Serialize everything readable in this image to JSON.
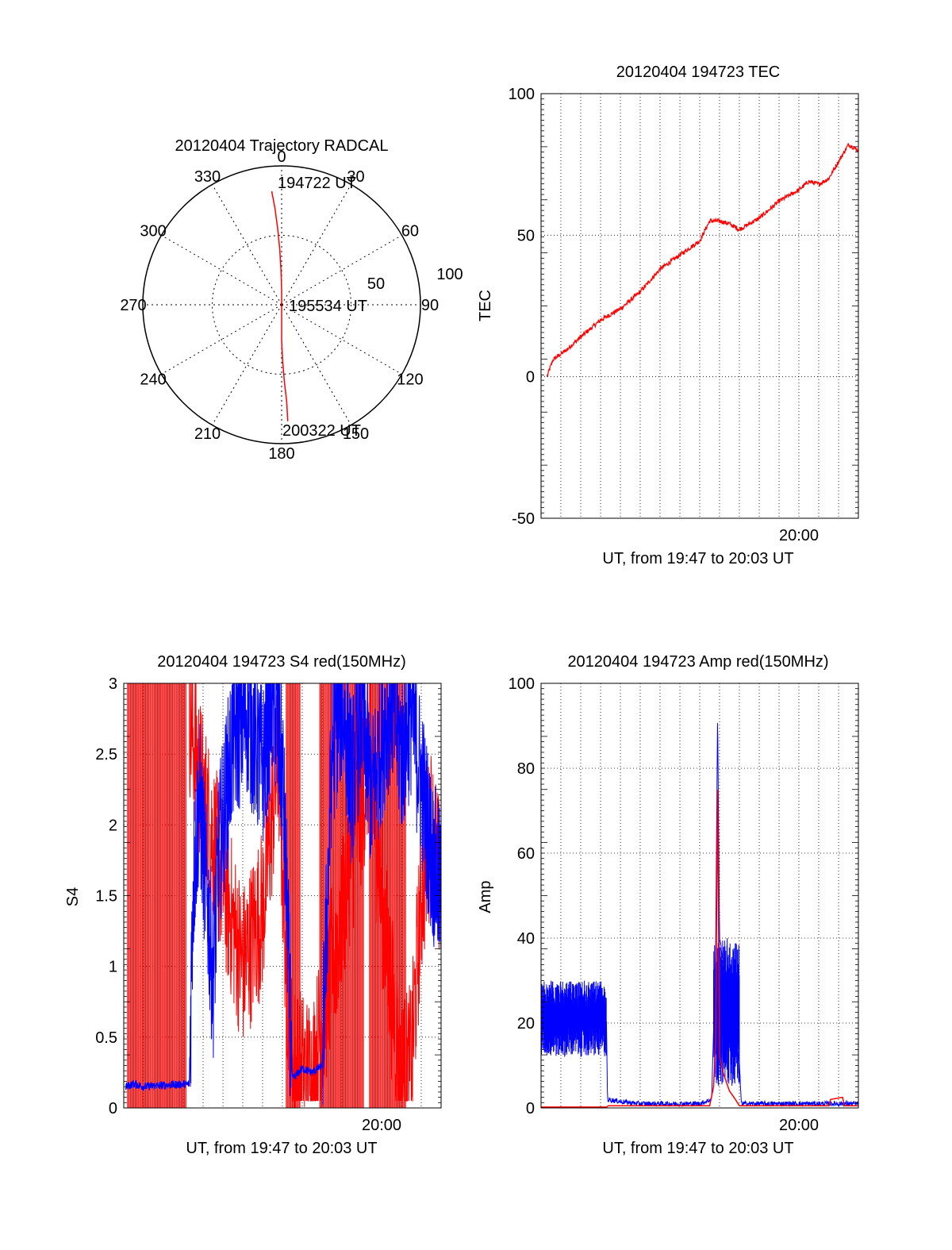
{
  "colors": {
    "red": "#ff0000",
    "blue": "#0000ff",
    "axis": "#000000"
  },
  "chart_data": [
    {
      "id": "trajectory",
      "type": "polar",
      "title": "20120404 Trajectory RADCAL",
      "angle_labels": [
        "0",
        "30",
        "60",
        "90",
        "120",
        "150",
        "180",
        "210",
        "240",
        "270",
        "300",
        "330"
      ],
      "radius_labels": [
        "50",
        "100"
      ],
      "start_label": "194722 UT",
      "mid_label": "195534 UT",
      "end_label": "200322 UT",
      "series": [
        {
          "color": "red",
          "points": [
            [
              355,
              82
            ],
            [
              356,
              70
            ],
            [
              357,
              55
            ],
            [
              358,
              40
            ],
            [
              359,
              25
            ],
            [
              0,
              10
            ],
            [
              0,
              3
            ],
            [
              180,
              10
            ],
            [
              180,
              25
            ],
            [
              179,
              40
            ],
            [
              178,
              55
            ],
            [
              177,
              70
            ],
            [
              177,
              84
            ]
          ]
        }
      ]
    },
    {
      "id": "tec",
      "type": "line",
      "title": "20120404 194723 TEC",
      "xlabel": "UT, from 19:47 to 20:03 UT",
      "ylabel": "TEC",
      "xlim": [
        0,
        16
      ],
      "ylim": [
        -50,
        100
      ],
      "yticks": [
        -50,
        0,
        50,
        100
      ],
      "xtick_labels": [
        {
          "x": 13,
          "label": "20:00"
        }
      ],
      "series": [
        {
          "color": "red",
          "points": [
            [
              0.3,
              0
            ],
            [
              0.6,
              6
            ],
            [
              1.2,
              9
            ],
            [
              2,
              14
            ],
            [
              3,
              20
            ],
            [
              4,
              24
            ],
            [
              5,
              30
            ],
            [
              6,
              38
            ],
            [
              7,
              43
            ],
            [
              8,
              48
            ],
            [
              8.5,
              55
            ],
            [
              9,
              55
            ],
            [
              9.5,
              54
            ],
            [
              10,
              52
            ],
            [
              10.5,
              54
            ],
            [
              11,
              56
            ],
            [
              12,
              62
            ],
            [
              13,
              66
            ],
            [
              13.5,
              69
            ],
            [
              14,
              68
            ],
            [
              14.5,
              70
            ],
            [
              15,
              76
            ],
            [
              15.5,
              82
            ],
            [
              16,
              80
            ]
          ]
        }
      ]
    },
    {
      "id": "s4",
      "type": "line",
      "title": "20120404 194723 S4 red(150MHz)",
      "xlabel": "UT, from 19:47 to 20:03 UT",
      "ylabel": "S4",
      "xlim": [
        0,
        16
      ],
      "ylim": [
        0,
        3
      ],
      "yticks": [
        0,
        0.5,
        1,
        1.5,
        2,
        2.5,
        3
      ],
      "xtick_labels": [
        {
          "x": 13,
          "label": "20:00"
        }
      ],
      "series": [
        {
          "color": "red",
          "style": "spikes",
          "segments": [
            [
              0.2,
              3.2
            ],
            [
              8.2,
              8.9
            ],
            [
              9.9,
              12.1
            ],
            [
              12.4,
              14.2
            ]
          ],
          "gaps": [
            [
              3.2,
              8.2
            ],
            [
              8.9,
              9.9
            ],
            [
              12.1,
              12.4
            ],
            [
              14.2,
              16
            ]
          ],
          "dense_points": [
            [
              3.3,
              2.8
            ],
            [
              4,
              2.2
            ],
            [
              5,
              1.6
            ],
            [
              6,
              1.0
            ],
            [
              7,
              1.4
            ],
            [
              7.8,
              2.5
            ],
            [
              8.2,
              1.0
            ],
            [
              8.5,
              0.3
            ],
            [
              9,
              0.25
            ],
            [
              9.5,
              0.2
            ],
            [
              12.4,
              2.5
            ],
            [
              13,
              1.5
            ],
            [
              13.5,
              0.8
            ],
            [
              14,
              0.2
            ],
            [
              14.5,
              0.3
            ],
            [
              15,
              1.5
            ],
            [
              15.5,
              2.0
            ],
            [
              16,
              1.5
            ]
          ]
        },
        {
          "color": "blue",
          "points": [
            [
              0.1,
              0.15
            ],
            [
              0.5,
              0.17
            ],
            [
              1,
              0.15
            ],
            [
              2,
              0.16
            ],
            [
              3.3,
              0.17
            ],
            [
              3.5,
              1.6
            ],
            [
              3.8,
              2.2
            ],
            [
              4.2,
              1.5
            ],
            [
              4.5,
              0.9
            ],
            [
              4.8,
              1.8
            ],
            [
              5.5,
              2.6
            ],
            [
              6.2,
              2.8
            ],
            [
              7,
              2.4
            ],
            [
              7.5,
              2.9
            ],
            [
              8,
              2.4
            ],
            [
              8.5,
              0.2
            ],
            [
              9,
              0.28
            ],
            [
              9.5,
              0.25
            ],
            [
              10,
              0.3
            ],
            [
              10.5,
              2.5
            ],
            [
              11,
              2.9
            ],
            [
              11.5,
              2.3
            ],
            [
              12,
              2.8
            ],
            [
              12.5,
              2.2
            ],
            [
              13,
              2.6
            ],
            [
              13.5,
              2.9
            ],
            [
              14,
              2.5
            ],
            [
              14.5,
              2.8
            ],
            [
              15,
              2.3
            ],
            [
              15.5,
              1.8
            ],
            [
              16,
              1.5
            ]
          ]
        }
      ]
    },
    {
      "id": "amp",
      "type": "line",
      "title": "20120404 194723 Amp red(150MHz)",
      "xlabel": "UT, from 19:47 to 20:03 UT",
      "ylabel": "Amp",
      "xlim": [
        0,
        16
      ],
      "ylim": [
        0,
        100
      ],
      "yticks": [
        0,
        20,
        40,
        60,
        80,
        100
      ],
      "xtick_labels": [
        {
          "x": 13,
          "label": "20:00"
        }
      ],
      "series": [
        {
          "color": "red",
          "points": [
            [
              0,
              0.2
            ],
            [
              3.3,
              0.2
            ],
            [
              3.4,
              0.5
            ],
            [
              8.5,
              0.5
            ],
            [
              8.7,
              5
            ],
            [
              8.8,
              15
            ],
            [
              8.9,
              75
            ],
            [
              9.0,
              12
            ],
            [
              9.2,
              8
            ],
            [
              9.5,
              4
            ],
            [
              9.8,
              2
            ],
            [
              10,
              0.5
            ],
            [
              14.5,
              0.5
            ],
            [
              14.6,
              2
            ],
            [
              15.2,
              2.5
            ],
            [
              15.3,
              0.5
            ],
            [
              16,
              0.5
            ]
          ]
        },
        {
          "color": "blue",
          "style": "band",
          "bands": [
            [
              0,
              3.3,
              12,
              30
            ],
            [
              8.7,
              10,
              5,
              40
            ]
          ],
          "points": [
            [
              0,
              20
            ],
            [
              3.3,
              20
            ],
            [
              3.35,
              2
            ],
            [
              4,
              1.5
            ],
            [
              5,
              1
            ],
            [
              8,
              1
            ],
            [
              8.6,
              2
            ],
            [
              8.8,
              35
            ],
            [
              8.9,
              93
            ],
            [
              9.0,
              40
            ],
            [
              9.5,
              25
            ],
            [
              10,
              10
            ],
            [
              10.1,
              1
            ],
            [
              12,
              1
            ],
            [
              15,
              1
            ],
            [
              16,
              1
            ]
          ]
        }
      ]
    }
  ]
}
